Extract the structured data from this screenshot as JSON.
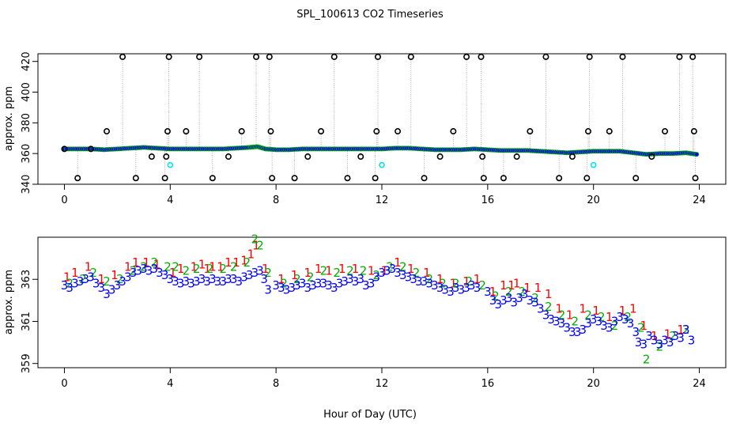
{
  "chart_data": {
    "title": "SPL_100613  CO2 Timeseries",
    "xlabel": "Hour of Day (UTC)",
    "panels": [
      {
        "type": "scatter",
        "ylabel": "approx. ppm",
        "xlim": [
          -1,
          25
        ],
        "ylim": [
          340,
          425
        ],
        "xticks": [
          "0",
          "4",
          "8",
          "12",
          "16",
          "20",
          "24"
        ],
        "yticks": [
          "340",
          "360",
          "380",
          "400",
          "420"
        ],
        "base_series": {
          "color": "#0000ff",
          "edge_color": "#00aa00",
          "x": [
            0.0,
            0.5,
            1.0,
            1.5,
            2.0,
            2.5,
            3.0,
            3.5,
            4.0,
            4.5,
            5.0,
            5.5,
            6.0,
            6.5,
            7.0,
            7.3,
            7.6,
            8.0,
            8.5,
            9.0,
            9.5,
            10.0,
            10.5,
            11.0,
            11.5,
            12.0,
            12.5,
            13.0,
            13.5,
            14.0,
            14.5,
            15.0,
            15.5,
            16.0,
            16.5,
            17.0,
            17.5,
            18.0,
            18.5,
            19.0,
            19.5,
            20.0,
            20.5,
            21.0,
            21.5,
            22.0,
            22.5,
            23.0,
            23.5,
            23.9
          ],
          "y": [
            363,
            363,
            363,
            362.5,
            363,
            363.5,
            364,
            363.5,
            363,
            363,
            363,
            363,
            363,
            363.5,
            364,
            364.5,
            363,
            362.5,
            362.5,
            363,
            363,
            363,
            363,
            363,
            363,
            363,
            363.5,
            363.5,
            363,
            362.5,
            362.5,
            362.5,
            363,
            362.5,
            362,
            362,
            362,
            361.5,
            361,
            360.5,
            361,
            361.5,
            361.5,
            361.5,
            360.5,
            359.5,
            360,
            360,
            360.5,
            359.5
          ]
        },
        "outliers": {
          "color": "#000000",
          "x": [
            0.0,
            0.5,
            1.0,
            1.6,
            2.2,
            2.7,
            3.3,
            3.8,
            3.85,
            3.9,
            3.95,
            4.6,
            5.1,
            5.6,
            6.2,
            6.7,
            7.25,
            7.75,
            7.8,
            7.85,
            8.7,
            9.2,
            9.7,
            10.2,
            10.7,
            11.2,
            11.75,
            11.8,
            11.85,
            12.6,
            13.1,
            13.6,
            14.2,
            14.7,
            15.2,
            15.75,
            15.8,
            15.85,
            16.6,
            17.1,
            17.6,
            18.2,
            18.7,
            19.2,
            19.75,
            19.8,
            19.85,
            20.6,
            21.1,
            21.6,
            22.2,
            22.7,
            23.25,
            23.75,
            23.8,
            23.85
          ],
          "y": [
            363,
            344,
            363,
            374.5,
            423,
            344,
            358,
            344,
            358,
            374.5,
            423,
            374.5,
            423,
            344,
            358,
            374.5,
            423,
            423,
            374.5,
            344,
            344,
            358,
            374.5,
            423,
            344,
            358,
            344,
            374.5,
            423,
            374.5,
            423,
            344,
            358,
            374.5,
            423,
            423,
            358,
            344,
            344,
            358,
            374.5,
            423,
            344,
            358,
            344,
            374.5,
            423,
            374.5,
            423,
            344,
            358,
            374.5,
            423,
            423,
            374.5,
            344
          ]
        },
        "flagged": {
          "color": "#00e5ee",
          "x": [
            4.0,
            12.0,
            20.0
          ],
          "y": [
            352.5,
            352.5,
            352.5
          ]
        }
      },
      {
        "type": "scatter",
        "ylabel": "approx. ppm",
        "xlim": [
          -1,
          25
        ],
        "ylim": [
          358.8,
          365
        ],
        "xticks": [
          "0",
          "4",
          "8",
          "12",
          "16",
          "20",
          "24"
        ],
        "yticks": [
          "359",
          "361",
          "363"
        ],
        "series": [
          {
            "name": "1",
            "color": "#ff0000",
            "x": [
              0.1,
              0.4,
              0.9,
              1.4,
              1.9,
              2.4,
              2.7,
              3.1,
              3.5,
              4.1,
              4.4,
              4.9,
              5.2,
              5.4,
              5.6,
              5.9,
              6.2,
              6.5,
              6.8,
              7.05,
              7.25,
              7.6,
              8.2,
              8.7,
              9.2,
              9.6,
              10.0,
              10.5,
              11.0,
              11.6,
              12.1,
              12.6,
              13.1,
              13.7,
              14.2,
              14.7,
              15.2,
              15.6,
              16.2,
              16.6,
              16.9,
              17.1,
              17.5,
              17.9,
              18.3,
              18.7,
              19.1,
              19.6,
              20.1,
              20.6,
              21.1,
              21.5,
              21.9,
              22.3,
              22.8,
              23.3
            ],
            "y": [
              363.1,
              363.3,
              363.6,
              363.0,
              363.2,
              363.6,
              363.8,
              363.8,
              363.7,
              363.3,
              363.5,
              363.6,
              363.7,
              363.5,
              363.6,
              363.6,
              363.8,
              363.8,
              363.9,
              364.2,
              364.6,
              363.5,
              363.0,
              363.2,
              363.3,
              363.5,
              363.4,
              363.5,
              363.5,
              363.4,
              363.4,
              363.8,
              363.5,
              363.3,
              363.0,
              362.8,
              362.9,
              363.0,
              362.4,
              362.7,
              362.7,
              362.8,
              362.6,
              362.6,
              362.3,
              361.6,
              361.3,
              361.6,
              361.5,
              361.2,
              361.5,
              361.6,
              360.8,
              360.3,
              360.4,
              360.6
            ]
          },
          {
            "name": "2",
            "color": "#00aa00",
            "x": [
              0.2,
              0.7,
              1.1,
              1.6,
              2.1,
              2.6,
              3.0,
              3.4,
              3.9,
              4.2,
              4.6,
              5.0,
              5.5,
              6.0,
              6.4,
              6.9,
              7.2,
              7.4,
              7.7,
              8.3,
              8.8,
              9.3,
              9.8,
              10.3,
              10.8,
              11.3,
              11.8,
              12.3,
              12.8,
              13.3,
              13.8,
              14.3,
              14.8,
              15.3,
              15.8,
              16.3,
              16.8,
              17.3,
              17.8,
              18.3,
              18.8,
              19.3,
              19.8,
              20.3,
              20.8,
              21.3,
              21.8,
              22.0,
              22.5,
              23.0,
              23.5
            ],
            "y": [
              362.8,
              363.0,
              363.3,
              362.9,
              363.0,
              363.4,
              363.6,
              363.8,
              363.6,
              363.6,
              363.4,
              363.5,
              363.5,
              363.5,
              363.6,
              363.8,
              364.9,
              364.6,
              363.3,
              362.8,
              363.0,
              363.1,
              363.4,
              363.3,
              363.4,
              363.4,
              363.2,
              363.6,
              363.6,
              363.3,
              363.0,
              362.8,
              362.8,
              362.9,
              362.7,
              362.2,
              362.4,
              362.4,
              362.1,
              361.7,
              361.3,
              361.0,
              361.3,
              361.2,
              360.8,
              361.2,
              360.7,
              359.2,
              359.8,
              360.3,
              360.6
            ]
          },
          {
            "name": "3",
            "color": "#0000ff",
            "x": [
              0.0,
              0.2,
              0.4,
              0.6,
              0.8,
              1.0,
              1.2,
              1.4,
              1.6,
              1.8,
              2.0,
              2.2,
              2.4,
              2.6,
              2.8,
              3.0,
              3.2,
              3.4,
              3.6,
              3.8,
              4.0,
              4.2,
              4.4,
              4.6,
              4.8,
              5.0,
              5.2,
              5.4,
              5.6,
              5.8,
              6.0,
              6.2,
              6.4,
              6.6,
              6.8,
              7.0,
              7.2,
              7.4,
              7.55,
              7.7,
              8.0,
              8.2,
              8.4,
              8.6,
              8.8,
              9.0,
              9.2,
              9.4,
              9.6,
              9.8,
              10.0,
              10.2,
              10.4,
              10.6,
              10.8,
              11.0,
              11.2,
              11.4,
              11.6,
              11.8,
              12.0,
              12.2,
              12.4,
              12.6,
              12.8,
              13.0,
              13.2,
              13.4,
              13.6,
              13.8,
              14.0,
              14.2,
              14.4,
              14.6,
              14.8,
              15.0,
              15.2,
              15.4,
              15.6,
              16.0,
              16.2,
              16.4,
              16.6,
              16.8,
              17.0,
              17.2,
              17.4,
              17.6,
              17.8,
              18.0,
              18.2,
              18.4,
              18.6,
              18.8,
              19.0,
              19.2,
              19.4,
              19.6,
              19.8,
              20.0,
              20.2,
              20.4,
              20.6,
              20.8,
              21.0,
              21.2,
              21.4,
              21.6,
              21.7,
              21.9,
              22.1,
              22.3,
              22.5,
              22.7,
              22.9,
              23.1,
              23.3,
              23.5,
              23.7
            ],
            "y": [
              362.7,
              362.6,
              362.8,
              362.9,
              363.0,
              363.1,
              362.8,
              362.6,
              362.3,
              362.5,
              362.7,
              362.9,
              363.1,
              363.3,
              363.4,
              363.5,
              363.4,
              363.5,
              363.3,
              363.2,
              363.0,
              362.9,
              362.8,
              362.9,
              362.8,
              362.9,
              363.0,
              362.9,
              363.0,
              362.9,
              362.9,
              363.0,
              363.0,
              362.9,
              363.1,
              363.2,
              363.3,
              363.4,
              363.0,
              362.5,
              362.7,
              362.6,
              362.5,
              362.6,
              362.7,
              362.8,
              362.6,
              362.7,
              362.8,
              362.8,
              362.7,
              362.6,
              362.8,
              362.9,
              363.0,
              362.9,
              363.0,
              362.7,
              362.8,
              363.1,
              363.3,
              363.4,
              363.5,
              363.3,
              363.2,
              363.1,
              363.0,
              362.9,
              362.9,
              362.8,
              362.7,
              362.6,
              362.5,
              362.4,
              362.6,
              362.5,
              362.6,
              362.7,
              362.6,
              362.4,
              362.0,
              361.8,
              362.0,
              362.1,
              361.9,
              362.1,
              362.3,
              362.0,
              361.9,
              361.6,
              361.3,
              361.1,
              361.0,
              360.9,
              360.7,
              360.5,
              360.5,
              360.6,
              360.9,
              361.1,
              361.0,
              360.8,
              360.7,
              361.0,
              361.2,
              361.1,
              360.9,
              360.5,
              360.0,
              359.9,
              360.3,
              360.1,
              359.9,
              360.1,
              360.0,
              360.3,
              360.2,
              360.6,
              360.1
            ]
          }
        ]
      }
    ]
  }
}
